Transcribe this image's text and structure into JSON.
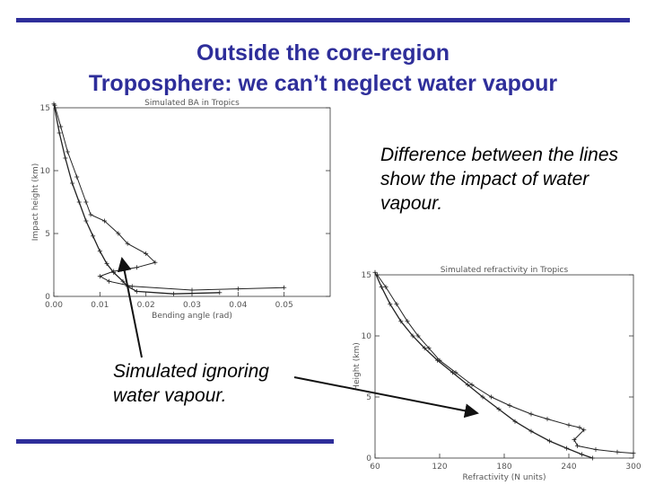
{
  "slide": {
    "title_line1": "Outside the core-region",
    "title_line2": "Troposphere: we can’t neglect water vapour",
    "note_difference": "Difference between the lines show the impact of water vapour.",
    "note_ignoring": "Simulated ignoring water vapour.",
    "accent_color": "#2e2e9a"
  },
  "chart_data": [
    {
      "type": "line",
      "title": "Simulated BA in Tropics",
      "xlabel": "Bending angle (rad)",
      "ylabel": "Impact height (km)",
      "xlim": [
        0.0,
        0.06
      ],
      "ylim": [
        0,
        15
      ],
      "xticks": [
        "0.00",
        "0.01",
        "0.02",
        "0.03",
        "0.04",
        "0.05"
      ],
      "yticks": [
        "0",
        "5",
        "10",
        "15"
      ],
      "series": [
        {
          "values": [
            [
              0.0002,
              15.2
            ],
            [
              0.0015,
              13.5
            ],
            [
              0.003,
              11.5
            ],
            [
              0.005,
              9.5
            ],
            [
              0.007,
              7.5
            ],
            [
              0.008,
              6.5
            ],
            [
              0.011,
              6.0
            ],
            [
              0.014,
              5.0
            ],
            [
              0.016,
              4.2
            ],
            [
              0.02,
              3.4
            ],
            [
              0.022,
              2.7
            ],
            [
              0.018,
              2.3
            ],
            [
              0.013,
              2.0
            ],
            [
              0.01,
              1.6
            ],
            [
              0.012,
              1.2
            ],
            [
              0.017,
              0.8
            ],
            [
              0.03,
              0.5
            ],
            [
              0.04,
              0.6
            ],
            [
              0.05,
              0.7
            ]
          ]
        },
        {
          "values": [
            [
              0.0,
              15.3
            ],
            [
              0.0012,
              13.0
            ],
            [
              0.0025,
              11.0
            ],
            [
              0.004,
              9.0
            ],
            [
              0.0055,
              7.5
            ],
            [
              0.007,
              6.0
            ],
            [
              0.0085,
              4.8
            ],
            [
              0.01,
              3.6
            ],
            [
              0.0115,
              2.6
            ],
            [
              0.013,
              1.9
            ],
            [
              0.015,
              1.2
            ],
            [
              0.016,
              0.8
            ],
            [
              0.018,
              0.4
            ],
            [
              0.026,
              0.2
            ],
            [
              0.036,
              0.3
            ]
          ]
        }
      ]
    },
    {
      "type": "line",
      "title": "Simulated refractivity in Tropics",
      "xlabel": "Refractivity (N units)",
      "ylabel": "Height (km)",
      "xlim": [
        60,
        300
      ],
      "ylim": [
        0,
        15
      ],
      "xticks": [
        "60",
        "120",
        "180",
        "240",
        "300"
      ],
      "yticks": [
        "0",
        "5",
        "10",
        "15"
      ],
      "series": [
        {
          "values": [
            [
              62,
              15
            ],
            [
              70,
              14
            ],
            [
              80,
              12.6
            ],
            [
              90,
              11.2
            ],
            [
              100,
              10.0
            ],
            [
              110,
              9.0
            ],
            [
              120,
              8.0
            ],
            [
              135,
              7.0
            ],
            [
              150,
              6.0
            ],
            [
              168,
              5.0
            ],
            [
              185,
              4.3
            ],
            [
              205,
              3.6
            ],
            [
              220,
              3.2
            ],
            [
              240,
              2.7
            ],
            [
              250,
              2.5
            ],
            [
              254,
              2.3
            ],
            [
              245,
              1.5
            ],
            [
              248,
              1.0
            ],
            [
              265,
              0.7
            ],
            [
              285,
              0.5
            ],
            [
              300,
              0.4
            ]
          ]
        },
        {
          "values": [
            [
              60,
              15.2
            ],
            [
              66,
              14
            ],
            [
              74,
              12.6
            ],
            [
              84,
              11.2
            ],
            [
              95,
              10.0
            ],
            [
              106,
              9.0
            ],
            [
              118,
              8.0
            ],
            [
              132,
              7.0
            ],
            [
              146,
              6.0
            ],
            [
              160,
              5.0
            ],
            [
              175,
              4.0
            ],
            [
              190,
              3.0
            ],
            [
              205,
              2.2
            ],
            [
              222,
              1.4
            ],
            [
              238,
              0.8
            ],
            [
              252,
              0.3
            ],
            [
              262,
              0.0
            ]
          ]
        }
      ]
    }
  ]
}
